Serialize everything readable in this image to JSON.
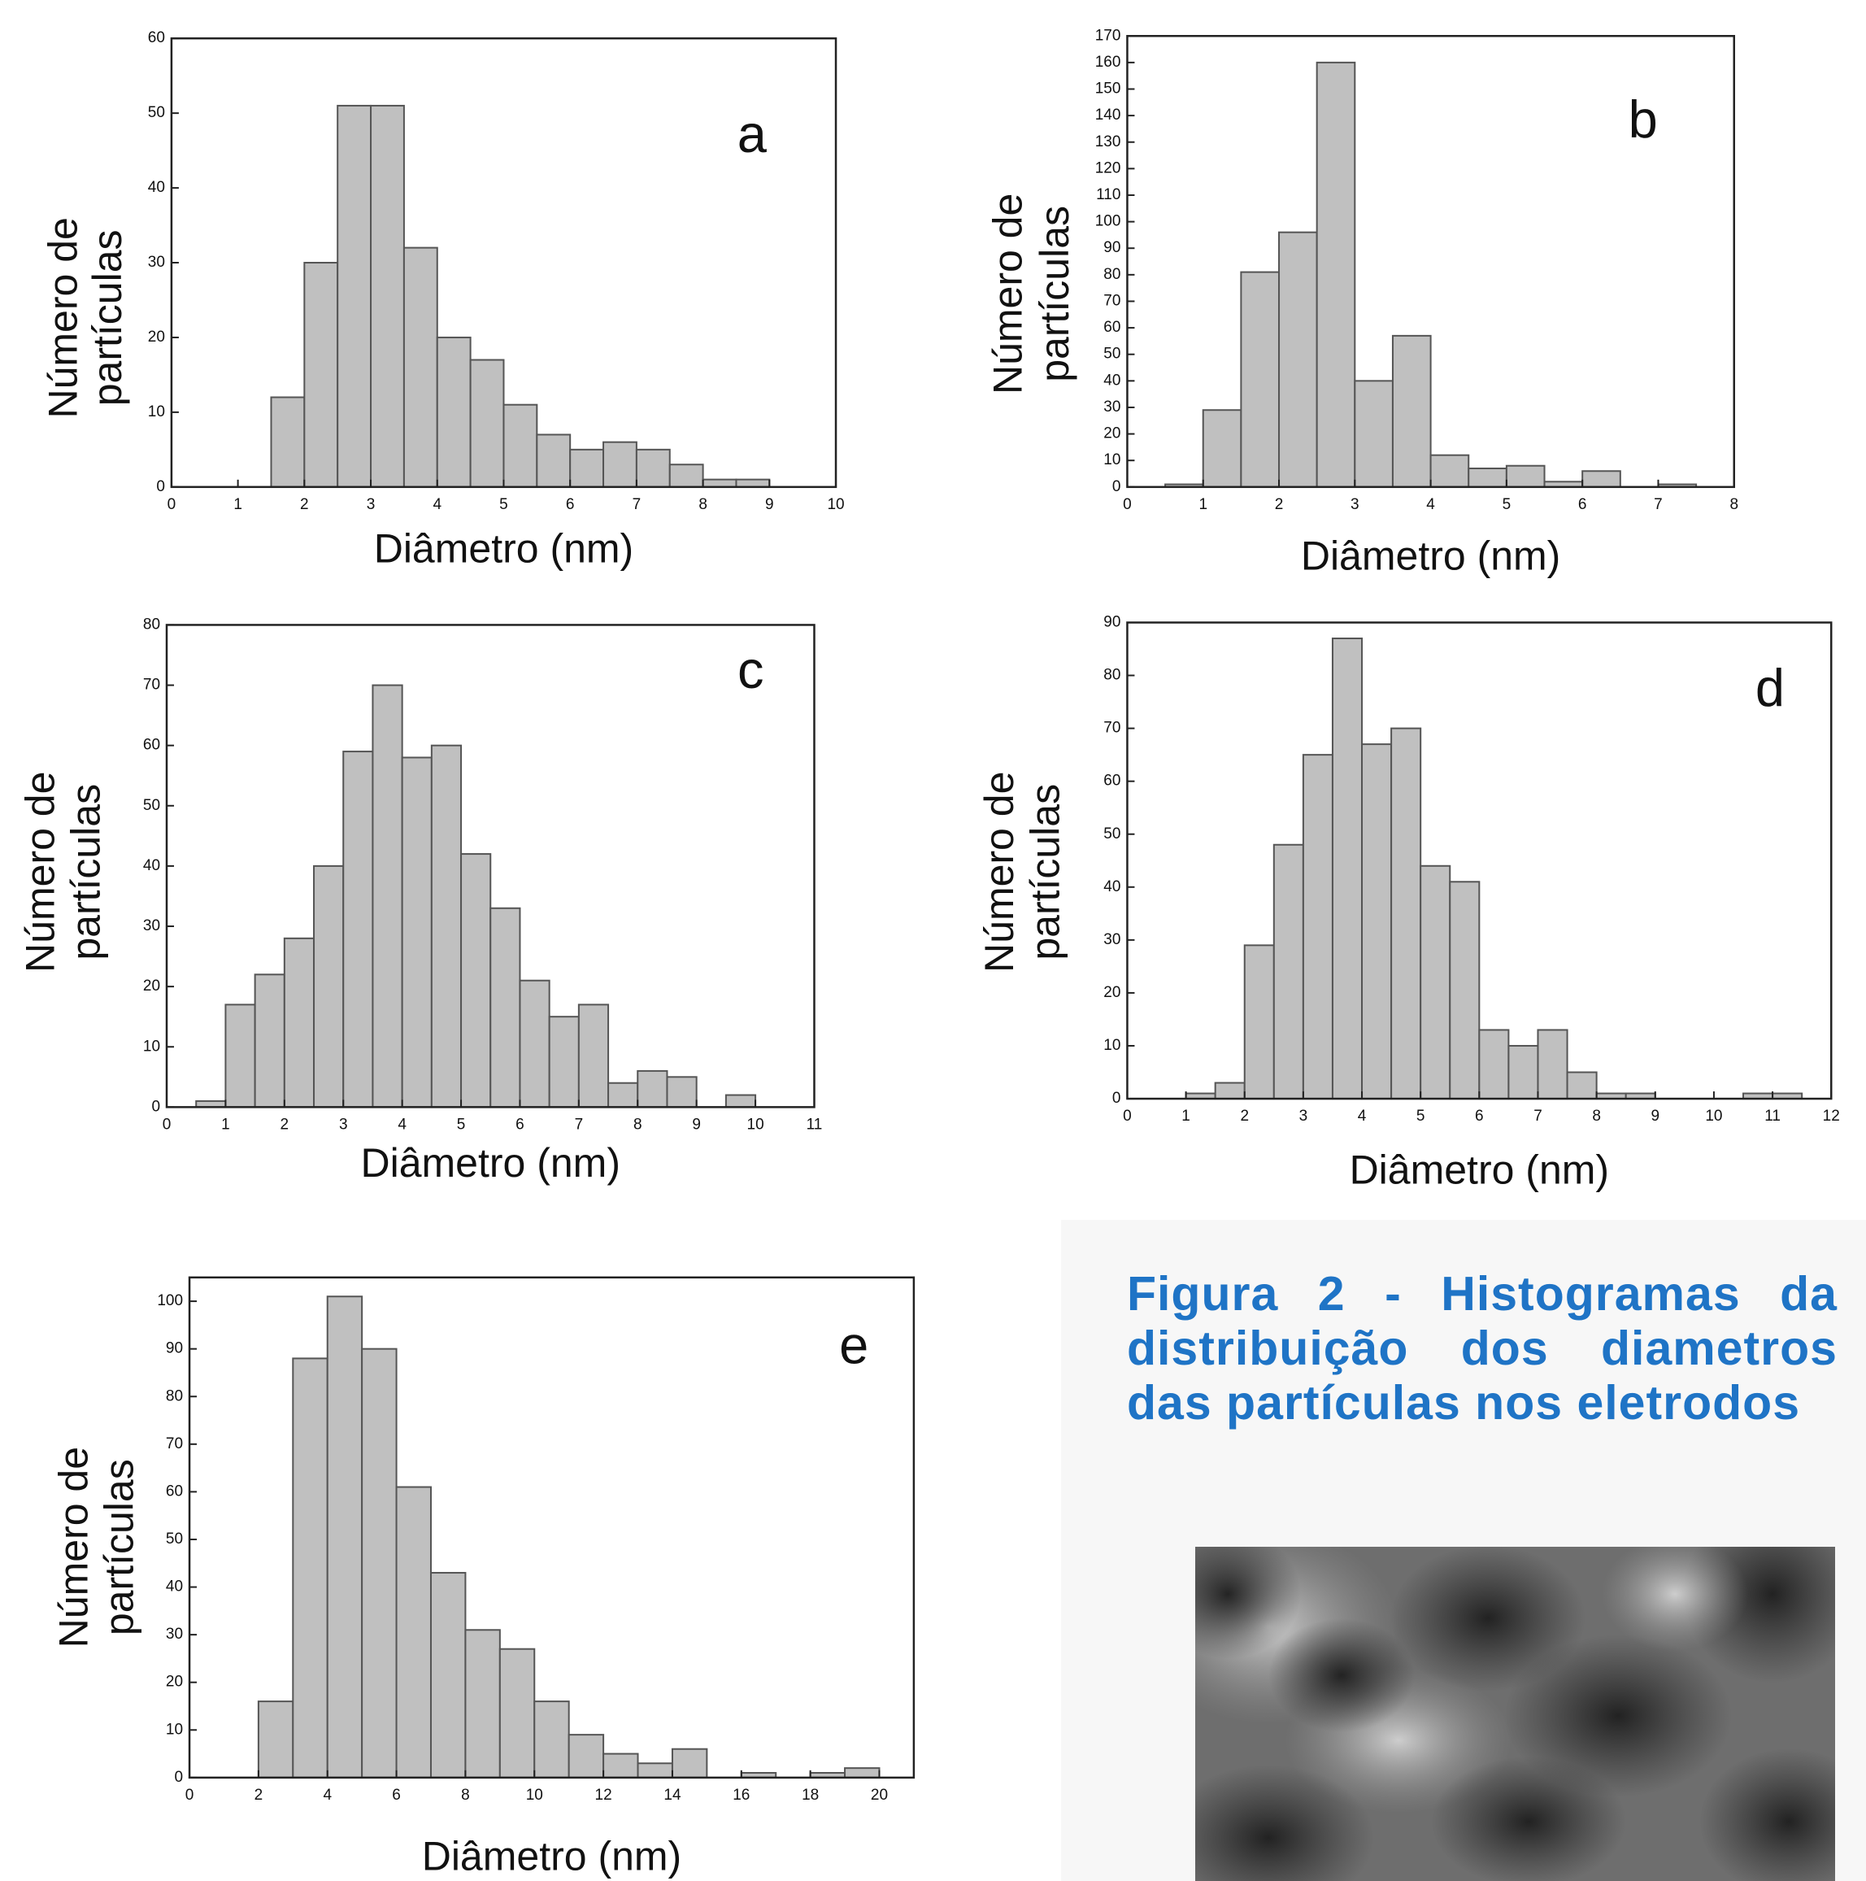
{
  "caption": "Figura 2 - Histogramas da distribuição dos diametros das partículas nos eletrodos",
  "chart_data": [
    {
      "type": "histogram",
      "label": "a",
      "xlabel": "Diâmetro (nm)",
      "ylabel": [
        "Número de",
        "partículas"
      ],
      "bins": [
        1.5,
        2,
        2.5,
        3,
        3.5,
        4,
        4.5,
        5,
        5.5,
        6,
        6.5,
        7,
        7.5,
        8,
        8.5,
        9
      ],
      "values": [
        12,
        30,
        51,
        51,
        32,
        20,
        17,
        11,
        7,
        5,
        6,
        5,
        3,
        1,
        1
      ],
      "color": "#c0c0c0",
      "xlim": [
        0,
        10
      ],
      "xticks": [
        0,
        1,
        2,
        3,
        4,
        5,
        6,
        7,
        8,
        9,
        10
      ],
      "ylim": [
        0,
        60
      ],
      "yticks": [
        0,
        10,
        20,
        30,
        40,
        50,
        60
      ]
    },
    {
      "type": "histogram",
      "label": "b",
      "xlabel": "Diâmetro (nm)",
      "ylabel": [
        "Número de",
        "partículas"
      ],
      "bins": [
        0.5,
        1,
        1.5,
        2,
        2.5,
        3,
        3.5,
        4,
        4.5,
        5,
        5.5,
        6,
        6.5,
        7,
        7.5
      ],
      "values": [
        1,
        29,
        81,
        96,
        160,
        40,
        57,
        12,
        7,
        8,
        2,
        6,
        0,
        1
      ],
      "color": "#c0c0c0",
      "xlim": [
        0,
        8
      ],
      "xticks": [
        0,
        1,
        2,
        3,
        4,
        5,
        6,
        7,
        8
      ],
      "ylim": [
        0,
        170
      ],
      "yticks": [
        0,
        10,
        20,
        30,
        40,
        50,
        60,
        70,
        80,
        90,
        100,
        110,
        120,
        130,
        140,
        150,
        160,
        170
      ]
    },
    {
      "type": "histogram",
      "label": "c",
      "xlabel": "Diâmetro (nm)",
      "ylabel": [
        "Número de",
        "partículas"
      ],
      "bins": [
        0.5,
        1,
        1.5,
        2,
        2.5,
        3,
        3.5,
        4,
        4.5,
        5,
        5.5,
        6,
        6.5,
        7,
        7.5,
        8,
        8.5,
        9,
        9.5,
        10
      ],
      "values": [
        1,
        17,
        22,
        28,
        40,
        59,
        70,
        58,
        60,
        42,
        33,
        21,
        15,
        17,
        4,
        6,
        5,
        0,
        2
      ],
      "color": "#c0c0c0",
      "xlim": [
        0,
        11
      ],
      "xticks": [
        0,
        1,
        2,
        3,
        4,
        5,
        6,
        7,
        8,
        9,
        10,
        11
      ],
      "ylim": [
        0,
        80
      ],
      "yticks": [
        0,
        10,
        20,
        30,
        40,
        50,
        60,
        70,
        80
      ]
    },
    {
      "type": "histogram",
      "label": "d",
      "xlabel": "Diâmetro (nm)",
      "ylabel": [
        "Número de",
        "partículas"
      ],
      "bins": [
        1,
        1.5,
        2,
        2.5,
        3,
        3.5,
        4,
        4.5,
        5,
        5.5,
        6,
        6.5,
        7,
        7.5,
        8,
        8.5,
        9,
        9.5,
        10,
        10.5,
        11,
        11.5
      ],
      "values": [
        1,
        3,
        29,
        48,
        65,
        87,
        67,
        70,
        44,
        41,
        13,
        10,
        13,
        5,
        1,
        1,
        0,
        0,
        0,
        1,
        1
      ],
      "color": "#c0c0c0",
      "xlim": [
        0,
        12
      ],
      "xticks": [
        0,
        1,
        2,
        3,
        4,
        5,
        6,
        7,
        8,
        9,
        10,
        11,
        12
      ],
      "ylim": [
        0,
        90
      ],
      "yticks": [
        0,
        10,
        20,
        30,
        40,
        50,
        60,
        70,
        80,
        90
      ]
    },
    {
      "type": "histogram",
      "label": "e",
      "xlabel": "Diâmetro (nm)",
      "ylabel": [
        "Número de",
        "partículas"
      ],
      "bins": [
        2,
        3,
        4,
        5,
        6,
        7,
        8,
        9,
        10,
        11,
        12,
        13,
        14,
        15,
        16,
        17,
        18,
        19,
        20
      ],
      "values": [
        16,
        88,
        101,
        90,
        61,
        43,
        31,
        27,
        16,
        9,
        5,
        3,
        6,
        0,
        1,
        0,
        1,
        2
      ],
      "color": "#c0c0c0",
      "xlim": [
        0,
        21
      ],
      "xticks": [
        0,
        2,
        4,
        6,
        8,
        10,
        12,
        14,
        16,
        18,
        20
      ],
      "ylim": [
        0,
        105
      ],
      "yticks": [
        0,
        10,
        20,
        30,
        40,
        50,
        60,
        70,
        80,
        90,
        100
      ]
    }
  ]
}
